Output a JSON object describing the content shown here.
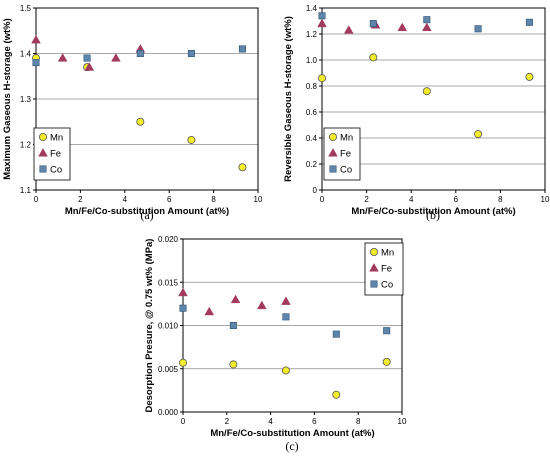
{
  "colors": {
    "Mn": "#f2ec2a",
    "Fe": "#a23a5e",
    "Co": "#5e86ad",
    "grid": "#8c8c8c"
  },
  "chart_data": [
    {
      "type": "scatter",
      "caption": "(a)",
      "xlabel": "Mn/Fe/Co-substitution Amount (at%)",
      "ylabel": "Maximum Gaseous H-storage (wt%)",
      "xlim": [
        0,
        10
      ],
      "ylim": [
        1.1,
        1.5
      ],
      "xticks": [
        0,
        2,
        4,
        6,
        8,
        10
      ],
      "yticks": [
        1.1,
        1.2,
        1.3,
        1.4,
        1.5
      ],
      "ytick_labels": [
        "1.1",
        "1.2",
        "1.3",
        "1.4",
        "1.5"
      ],
      "grid": true,
      "legend_position": "lower-left",
      "series": [
        {
          "name": "Mn",
          "marker": "circle",
          "x": [
            0,
            2.3,
            4.7,
            7.0,
            9.3
          ],
          "y": [
            1.39,
            1.37,
            1.25,
            1.21,
            1.15
          ]
        },
        {
          "name": "Fe",
          "marker": "triangle",
          "x": [
            0,
            1.2,
            2.4,
            3.6,
            4.7
          ],
          "y": [
            1.43,
            1.39,
            1.37,
            1.39,
            1.41
          ]
        },
        {
          "name": "Co",
          "marker": "square",
          "x": [
            0,
            2.3,
            4.7,
            7.0,
            9.3
          ],
          "y": [
            1.38,
            1.39,
            1.4,
            1.4,
            1.41
          ]
        }
      ]
    },
    {
      "type": "scatter",
      "caption": "(b)",
      "xlabel": "Mn/Fe/Co-substitution Amount (at%)",
      "ylabel": "Reversible Gaseous H-storage (wt%)",
      "xlim": [
        0,
        10
      ],
      "ylim": [
        0,
        1.4
      ],
      "xticks": [
        0,
        2,
        4,
        6,
        8,
        10
      ],
      "yticks": [
        0,
        0.2,
        0.4,
        0.6,
        0.8,
        1.0,
        1.2,
        1.4
      ],
      "ytick_labels": [
        "0",
        "0.2",
        "0.4",
        "0.6",
        "0.8",
        "1.0",
        "1.2",
        "1.4"
      ],
      "grid": true,
      "legend_position": "right",
      "series": [
        {
          "name": "Mn",
          "marker": "circle",
          "x": [
            0,
            2.3,
            4.7,
            7.0,
            9.3
          ],
          "y": [
            0.86,
            1.02,
            0.76,
            0.43,
            0.87
          ]
        },
        {
          "name": "Fe",
          "marker": "triangle",
          "x": [
            0,
            1.2,
            2.4,
            3.6,
            4.7
          ],
          "y": [
            1.28,
            1.23,
            1.27,
            1.25,
            1.25
          ]
        },
        {
          "name": "Co",
          "marker": "square",
          "x": [
            0,
            2.3,
            4.7,
            7.0,
            9.3
          ],
          "y": [
            1.34,
            1.28,
            1.31,
            1.24,
            1.29
          ]
        }
      ]
    },
    {
      "type": "scatter",
      "caption": "(c)",
      "xlabel": "Mn/Fe/Co-substitution Amount (at%)",
      "ylabel": "Desorption Presure, @ 0.75 wt% (MPa)",
      "xlim": [
        0,
        10
      ],
      "ylim": [
        0,
        0.02
      ],
      "xticks": [
        0,
        2,
        4,
        6,
        8,
        10
      ],
      "yticks": [
        0,
        0.005,
        0.01,
        0.015,
        0.02
      ],
      "ytick_labels": [
        "0.000",
        "0.005",
        "0.010",
        "0.015",
        "0.020"
      ],
      "grid": true,
      "legend_position": "upper-right",
      "series": [
        {
          "name": "Mn",
          "marker": "circle",
          "x": [
            0,
            2.3,
            4.7,
            7.0,
            9.3
          ],
          "y": [
            0.0057,
            0.0055,
            0.0048,
            0.002,
            0.0058
          ]
        },
        {
          "name": "Fe",
          "marker": "triangle",
          "x": [
            0,
            1.2,
            2.4,
            3.6,
            4.7
          ],
          "y": [
            0.0138,
            0.0116,
            0.013,
            0.0123,
            0.0128
          ]
        },
        {
          "name": "Co",
          "marker": "square",
          "x": [
            0,
            2.3,
            4.7,
            7.0,
            9.3
          ],
          "y": [
            0.012,
            0.01,
            0.011,
            0.009,
            0.0094
          ]
        }
      ]
    }
  ]
}
